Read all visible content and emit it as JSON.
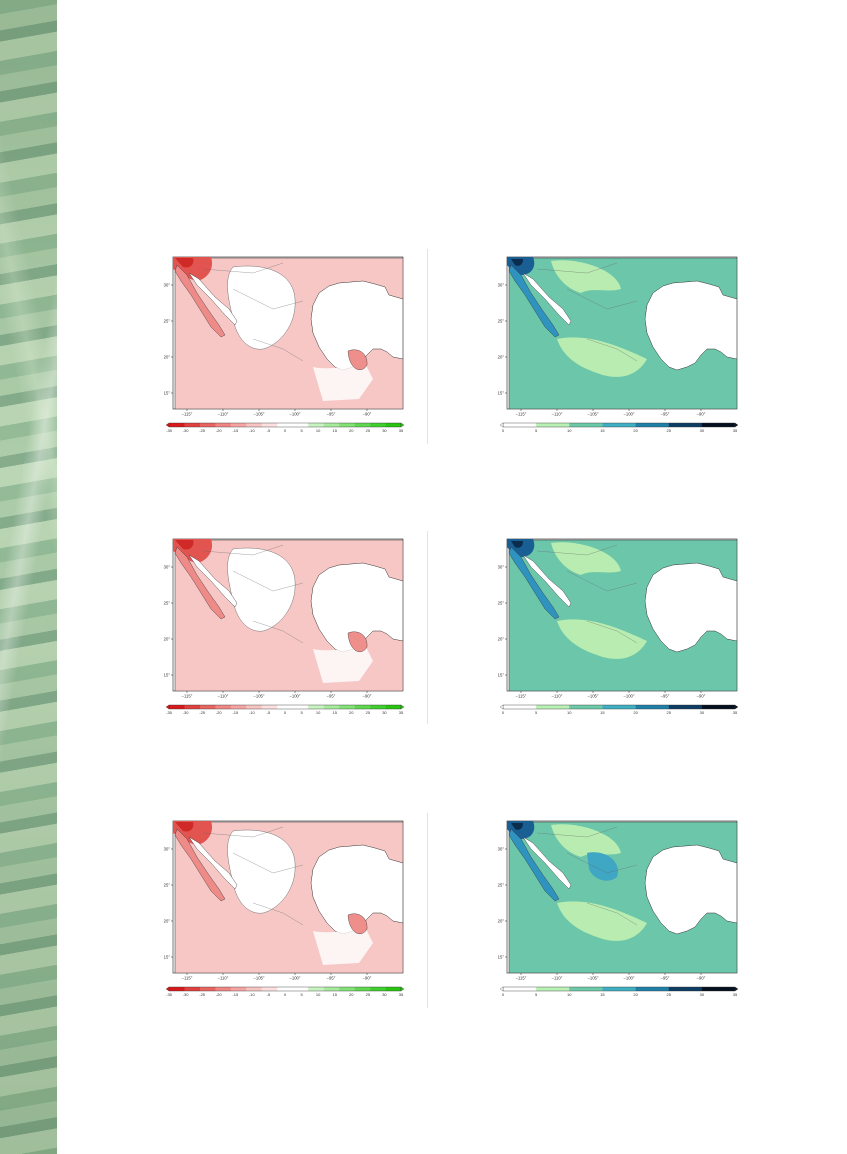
{
  "map_panels": {
    "lon_ticks": [
      "-115",
      "-110",
      "-105",
      "-100",
      "-95",
      "-90"
    ],
    "lat_ticks": [
      "30",
      "25",
      "20",
      "15"
    ],
    "anomaly_colorbar": {
      "labels": [
        "-35",
        "-30",
        "-25",
        "-20",
        "-15",
        "-10",
        "-5",
        "0",
        "5",
        "10",
        "15",
        "20",
        "25",
        "30",
        "35"
      ],
      "colors": [
        "#d7191c",
        "#e0403e",
        "#e86461",
        "#ef8684",
        "#f4a5a3",
        "#f8c4c2",
        "#fbe0df",
        "#ffffff",
        "#ffffff",
        "#c9f2c2",
        "#a6ea9c",
        "#83e276",
        "#5fd850",
        "#3fcf2e",
        "#27c410"
      ]
    },
    "magnitude_colorbar": {
      "labels": [
        "0",
        "5",
        "10",
        "15",
        "20",
        "25",
        "30",
        "35"
      ],
      "colors": [
        "#ffffff",
        "#b9f0b4",
        "#6dcaa8",
        "#3fb0c3",
        "#1f7fa7",
        "#0e3d64",
        "#05101e"
      ]
    },
    "rows": [
      {
        "anomaly_map": "row-1",
        "magnitude_map": "row-1"
      },
      {
        "anomaly_map": "row-2",
        "magnitude_map": "row-2"
      },
      {
        "anomaly_map": "row-3",
        "magnitude_map": "row-3"
      }
    ]
  }
}
